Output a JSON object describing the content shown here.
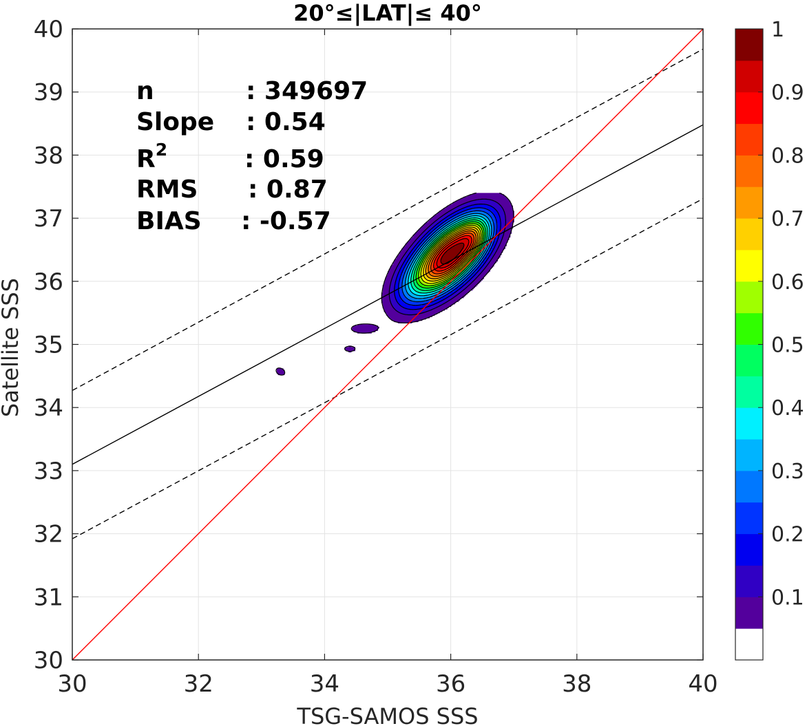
{
  "chart_data": {
    "type": "contour",
    "title": "20°≤|LAT|≤ 40°",
    "xlabel": "TSG-SAMOS SSS",
    "ylabel": "Satellite SSS",
    "xlim": [
      30,
      40
    ],
    "ylim": [
      30,
      40
    ],
    "xticks": [
      "30",
      "32",
      "34",
      "36",
      "38",
      "40"
    ],
    "yticks": [
      "30",
      "31",
      "32",
      "33",
      "34",
      "35",
      "36",
      "37",
      "38",
      "39",
      "40"
    ],
    "grid": true,
    "stats": {
      "n_label": "n",
      "n_value": ": 349697",
      "slope_label": "Slope",
      "slope_value": ": 0.54",
      "r2_label": "R",
      "r2_sup": "2",
      "r2_value": ": 0.59",
      "rms_label": "RMS",
      "rms_value": ": 0.87",
      "bias_label": "BIAS",
      "bias_value": ": -0.57"
    },
    "lines": {
      "one_to_one": {
        "color": "#ff0000",
        "points": [
          [
            30,
            30
          ],
          [
            40,
            40
          ]
        ]
      },
      "fit": {
        "color": "#000000",
        "points": [
          [
            30,
            33.1
          ],
          [
            40,
            38.48
          ]
        ]
      },
      "upper_bound": {
        "color": "#000000",
        "dashed": true,
        "points": [
          [
            30,
            34.27
          ],
          [
            40,
            39.68
          ]
        ]
      },
      "lower_bound": {
        "color": "#000000",
        "dashed": true,
        "points": [
          [
            30,
            31.92
          ],
          [
            40,
            37.31
          ]
        ]
      }
    },
    "contour_levels": [
      0.05,
      0.1,
      0.15,
      0.2,
      0.25,
      0.3,
      0.35,
      0.4,
      0.45,
      0.5,
      0.55,
      0.6,
      0.65,
      0.7,
      0.75,
      0.8,
      0.85,
      0.9,
      0.95
    ],
    "density_peaks": [
      {
        "x": 35.97,
        "y": 36.4,
        "sx": 0.42,
        "sy": 0.42,
        "rho": 0.62,
        "amp": 1.0
      },
      {
        "x": 36.35,
        "y": 36.7,
        "sx": 0.16,
        "sy": 0.2,
        "rho": 0.3,
        "amp": 0.18
      },
      {
        "x": 35.35,
        "y": 35.9,
        "sx": 0.25,
        "sy": 0.3,
        "rho": 0.3,
        "amp": 0.05
      },
      {
        "x": 34.6,
        "y": 35.25,
        "sx": 0.24,
        "sy": 0.09,
        "rho": 0.0,
        "amp": 0.065
      },
      {
        "x": 34.4,
        "y": 34.93,
        "sx": 0.14,
        "sy": 0.07,
        "rho": 0.0,
        "amp": 0.06
      },
      {
        "x": 33.3,
        "y": 34.57,
        "sx": 0.11,
        "sy": 0.09,
        "rho": -0.3,
        "amp": 0.062
      }
    ],
    "colorbar": {
      "ticks": [
        "0.1",
        "0.2",
        "0.3",
        "0.4",
        "0.5",
        "0.6",
        "0.7",
        "0.8",
        "0.9",
        "1"
      ],
      "colors": [
        "#ffffff",
        "#53009c",
        "#3000c4",
        "#0000f0",
        "#0034ff",
        "#0078ff",
        "#00b4ff",
        "#00f0ff",
        "#00ffa0",
        "#00ff60",
        "#30ff00",
        "#a0ff00",
        "#ffff00",
        "#ffd000",
        "#ff9a00",
        "#ff6c00",
        "#ff3c00",
        "#ff0000",
        "#d00000",
        "#800000"
      ]
    }
  }
}
